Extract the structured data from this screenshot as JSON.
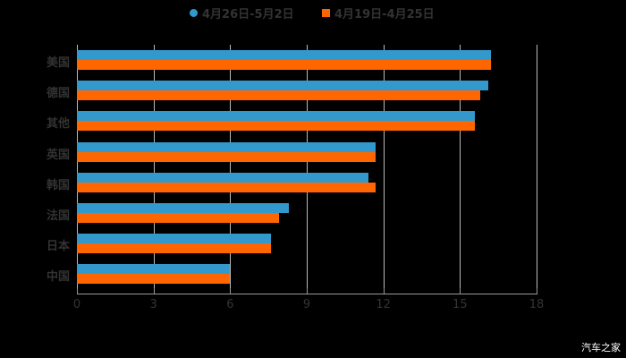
{
  "colors": {
    "series1": "#3399CC",
    "series2": "#FF6600",
    "background": "#000000"
  },
  "legend": [
    {
      "label": "4月26日-5月2日",
      "shape": "circle",
      "color": "#3399CC"
    },
    {
      "label": "4月19日-4月25日",
      "shape": "square",
      "color": "#FF6600"
    }
  ],
  "watermark": "汽车之家",
  "chart_data": {
    "type": "bar",
    "orientation": "horizontal",
    "title": "",
    "xlabel": "",
    "ylabel": "",
    "xlim": [
      0,
      18
    ],
    "xticks": [
      0,
      3,
      6,
      9,
      12,
      15,
      18
    ],
    "grid": true,
    "legend_position": "top",
    "categories": [
      "美国",
      "德国",
      "其他",
      "英国",
      "韩国",
      "法国",
      "日本",
      "中国"
    ],
    "series": [
      {
        "name": "4月26日-5月2日",
        "color": "#3399CC",
        "values": [
          16.2,
          16.1,
          15.6,
          11.7,
          11.4,
          8.3,
          7.6,
          6.0
        ]
      },
      {
        "name": "4月19日-4月25日",
        "color": "#FF6600",
        "values": [
          16.2,
          15.8,
          15.6,
          11.7,
          11.7,
          7.9,
          7.6,
          6.0
        ]
      }
    ]
  }
}
